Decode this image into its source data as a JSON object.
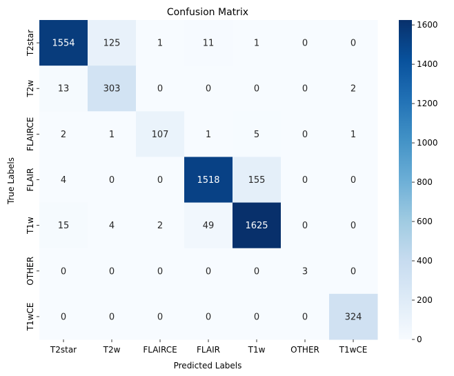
{
  "chart_data": {
    "type": "heatmap",
    "title": "Confusion Matrix",
    "xlabel": "Predicted Labels",
    "ylabel": "True Labels",
    "x_categories": [
      "T2star",
      "T2w",
      "FLAIRCE",
      "FLAIR",
      "T1w",
      "OTHER",
      "T1wCE"
    ],
    "y_categories": [
      "T2star",
      "T2w",
      "FLAIRCE",
      "FLAIR",
      "T1w",
      "OTHER",
      "T1wCE"
    ],
    "values": [
      [
        1554,
        125,
        1,
        11,
        1,
        0,
        0
      ],
      [
        13,
        303,
        0,
        0,
        0,
        0,
        2
      ],
      [
        2,
        1,
        107,
        1,
        5,
        0,
        1
      ],
      [
        4,
        0,
        0,
        1518,
        155,
        0,
        0
      ],
      [
        15,
        4,
        2,
        49,
        1625,
        0,
        0
      ],
      [
        0,
        0,
        0,
        0,
        0,
        3,
        0
      ],
      [
        0,
        0,
        0,
        0,
        0,
        0,
        324
      ]
    ],
    "colorbar": {
      "range": [
        0,
        1625
      ],
      "ticks": [
        0,
        200,
        400,
        600,
        800,
        1000,
        1200,
        1400,
        1600
      ],
      "colormap": "Blues"
    }
  }
}
